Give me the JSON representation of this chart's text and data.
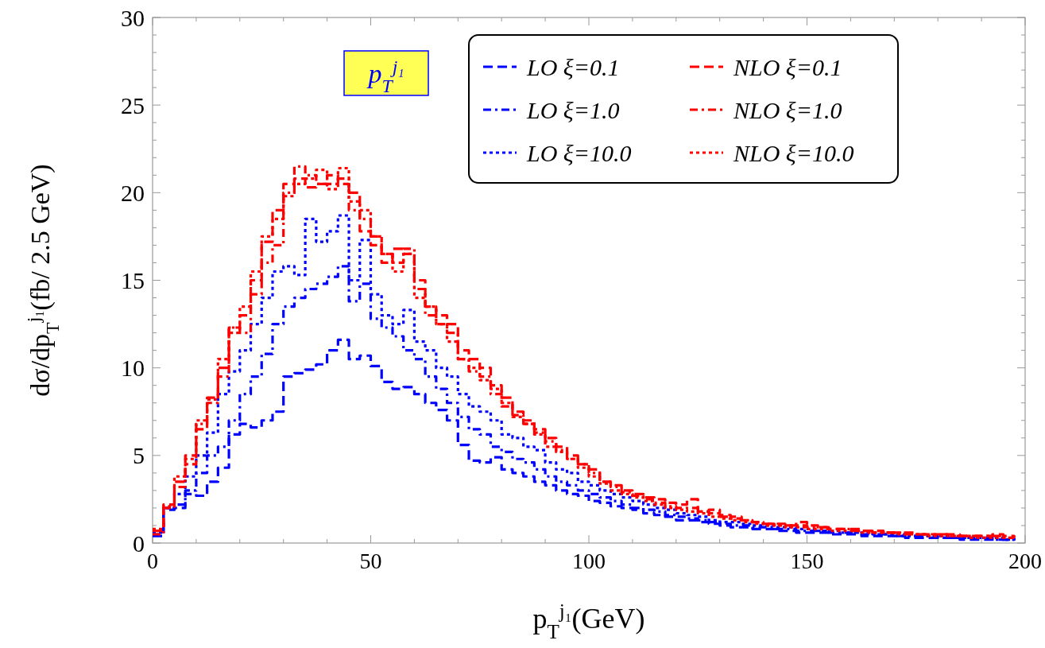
{
  "chart_data": {
    "type": "step",
    "annotations": [
      "p$_{T}$$^{j₁}$"
    ],
    "xlabel": "p$_{T}$$^{j₁}$(GeV)",
    "ylabel": "dσ/dp$_{T}$$^{j₁}$(fb/ 2.5 GeV)",
    "x": [
      0,
      2.5,
      5,
      7.5,
      10,
      12.5,
      15,
      17.5,
      20,
      22.5,
      25,
      27.5,
      30,
      32.5,
      35,
      37.5,
      40,
      42.5,
      45,
      47.5,
      50,
      52.5,
      55,
      57.5,
      60,
      62.5,
      65,
      67.5,
      70,
      72.5,
      75,
      77.5,
      80,
      82.5,
      85,
      87.5,
      90,
      92.5,
      95,
      97.5,
      100,
      102.5,
      105,
      107.5,
      110,
      112.5,
      115,
      117.5,
      120,
      122.5,
      125,
      127.5,
      130,
      132.5,
      135,
      137.5,
      140,
      142.5,
      145,
      147.5,
      150,
      152.5,
      155,
      157.5,
      160,
      162.5,
      165,
      167.5,
      170,
      172.5,
      175,
      177.5,
      180,
      182.5,
      185,
      187.5,
      190,
      192.5,
      195,
      197.5
    ],
    "series": [
      {
        "name": "LO ξ=0.1",
        "color": "#0000ff",
        "line_style": "dashed",
        "values": [
          0.4,
          1.9,
          2.0,
          2.8,
          2.7,
          3.5,
          4.3,
          6.2,
          6.8,
          6.6,
          7.0,
          7.5,
          9.5,
          9.7,
          9.9,
          10.2,
          11.0,
          11.6,
          10.5,
          10.7,
          10.1,
          9.2,
          8.8,
          8.9,
          8.5,
          8.0,
          7.6,
          7.0,
          5.6,
          4.7,
          4.6,
          4.9,
          4.2,
          4.0,
          3.8,
          3.5,
          3.3,
          3.0,
          2.8,
          2.7,
          2.4,
          2.3,
          2.1,
          2.0,
          1.9,
          1.7,
          1.6,
          1.5,
          1.3,
          1.3,
          1.2,
          1.1,
          1.0,
          0.9,
          0.9,
          0.8,
          0.8,
          0.7,
          0.7,
          0.6,
          0.6,
          0.6,
          0.5,
          0.5,
          0.5,
          0.4,
          0.4,
          0.4,
          0.4,
          0.3,
          0.3,
          0.3,
          0.3,
          0.3,
          0.2,
          0.2,
          0.2,
          0.2,
          0.2,
          0.2
        ]
      },
      {
        "name": "LO ξ=1.0",
        "color": "#0000ff",
        "line_style": "dashdot",
        "values": [
          0.5,
          2.0,
          2.2,
          3.0,
          4.0,
          5.0,
          5.5,
          7.0,
          8.5,
          9.5,
          10.8,
          12.5,
          13.5,
          14.0,
          14.5,
          14.8,
          15.2,
          15.8,
          13.8,
          14.8,
          12.8,
          12.3,
          11.8,
          11.0,
          10.5,
          9.5,
          8.8,
          8.0,
          7.2,
          6.5,
          6.2,
          5.5,
          5.2,
          4.8,
          4.6,
          4.2,
          3.8,
          3.5,
          3.3,
          3.0,
          2.8,
          2.6,
          2.4,
          2.2,
          2.0,
          1.9,
          1.8,
          1.6,
          1.5,
          1.4,
          1.3,
          1.2,
          1.1,
          1.0,
          1.0,
          0.9,
          0.9,
          0.8,
          0.8,
          0.7,
          0.7,
          0.7,
          0.6,
          0.6,
          0.6,
          0.5,
          0.5,
          0.5,
          0.4,
          0.4,
          0.4,
          0.4,
          0.3,
          0.3,
          0.3,
          0.3,
          0.3,
          0.2,
          0.2,
          0.3
        ]
      },
      {
        "name": "LO ξ=10.0",
        "color": "#0000ff",
        "line_style": "dotted",
        "values": [
          0.6,
          2.0,
          2.8,
          3.8,
          5.0,
          6.3,
          8.5,
          9.8,
          11.0,
          12.5,
          14.0,
          15.5,
          15.8,
          15.3,
          18.5,
          17.2,
          17.8,
          18.7,
          15.0,
          17.3,
          14.2,
          13.0,
          12.5,
          13.3,
          11.5,
          11.0,
          10.0,
          9.5,
          8.5,
          7.8,
          7.5,
          7.0,
          6.2,
          6.0,
          5.5,
          5.3,
          4.6,
          4.2,
          4.0,
          3.5,
          3.3,
          3.0,
          2.8,
          2.6,
          2.4,
          2.2,
          2.0,
          1.9,
          1.7,
          1.6,
          1.5,
          1.3,
          1.2,
          1.2,
          1.1,
          1.0,
          1.0,
          0.9,
          0.9,
          0.8,
          0.8,
          0.7,
          0.7,
          0.6,
          0.6,
          0.6,
          0.5,
          0.5,
          0.5,
          0.4,
          0.4,
          0.4,
          0.4,
          0.3,
          0.3,
          0.3,
          0.3,
          0.3,
          0.2,
          0.3
        ]
      },
      {
        "name": "NLO ξ=0.1",
        "color": "#ff0000",
        "line_style": "dashed",
        "values": [
          0.7,
          2.2,
          3.5,
          5.0,
          6.5,
          8.3,
          10.0,
          12.3,
          13.0,
          15.0,
          17.2,
          19.0,
          20.5,
          20.8,
          20.3,
          20.5,
          21.0,
          20.5,
          20.0,
          17.8,
          17.0,
          16.0,
          16.8,
          16.5,
          15.0,
          13.5,
          13.0,
          12.5,
          11.0,
          10.5,
          10.0,
          9.0,
          8.3,
          7.5,
          7.0,
          6.5,
          6.0,
          5.5,
          5.0,
          4.5,
          4.2,
          3.5,
          3.3,
          3.0,
          2.8,
          2.6,
          2.5,
          2.3,
          2.2,
          2.5,
          1.8,
          1.9,
          1.6,
          1.5,
          1.3,
          1.2,
          1.1,
          1.1,
          1.0,
          1.2,
          1.0,
          0.9,
          0.8,
          0.8,
          0.8,
          0.7,
          0.7,
          0.6,
          0.6,
          0.6,
          0.5,
          0.5,
          0.5,
          0.5,
          0.4,
          0.4,
          0.4,
          0.5,
          0.4,
          0.3
        ]
      },
      {
        "name": "NLO ξ=1.0",
        "color": "#ff0000",
        "line_style": "dashdot",
        "values": [
          0.5,
          2.0,
          3.2,
          4.5,
          6.8,
          8.0,
          9.5,
          12.3,
          12.0,
          14.2,
          16.0,
          17.0,
          20.0,
          21.5,
          21.0,
          20.5,
          20.5,
          20.8,
          19.0,
          18.5,
          17.5,
          16.5,
          16.0,
          16.8,
          14.5,
          13.0,
          12.5,
          12.0,
          10.5,
          9.8,
          9.5,
          8.5,
          7.8,
          7.3,
          6.8,
          6.3,
          5.8,
          5.3,
          4.8,
          4.5,
          4.0,
          3.5,
          3.2,
          2.9,
          2.7,
          2.5,
          2.3,
          2.1,
          2.0,
          2.0,
          1.8,
          1.7,
          1.5,
          1.4,
          1.3,
          1.2,
          1.1,
          1.0,
          1.0,
          1.0,
          0.9,
          0.9,
          0.8,
          0.8,
          0.7,
          0.7,
          0.6,
          0.6,
          0.6,
          0.5,
          0.5,
          0.5,
          0.5,
          0.4,
          0.4,
          0.4,
          0.4,
          0.4,
          0.3,
          0.3
        ]
      },
      {
        "name": "NLO ξ=10.0",
        "color": "#ff0000",
        "line_style": "dotted",
        "values": [
          0.8,
          2.1,
          3.8,
          4.8,
          7.0,
          8.2,
          10.5,
          12.0,
          13.5,
          15.5,
          17.5,
          18.5,
          19.8,
          20.5,
          20.8,
          21.3,
          20.2,
          21.4,
          19.5,
          19.0,
          17.5,
          16.5,
          15.5,
          16.5,
          14.0,
          13.5,
          12.5,
          11.5,
          10.5,
          10.0,
          9.3,
          8.8,
          8.0,
          7.2,
          6.8,
          6.2,
          5.5,
          5.2,
          4.8,
          4.3,
          3.8,
          3.4,
          3.0,
          2.8,
          2.6,
          2.4,
          2.2,
          2.0,
          1.9,
          1.8,
          1.7,
          1.5,
          1.4,
          1.3,
          1.2,
          1.1,
          1.0,
          1.0,
          0.9,
          0.9,
          0.8,
          0.8,
          0.7,
          0.7,
          0.7,
          0.6,
          0.6,
          0.6,
          0.5,
          0.5,
          0.5,
          0.4,
          0.4,
          0.4,
          0.4,
          0.3,
          0.3,
          0.3,
          0.3,
          0.3
        ]
      }
    ],
    "xlim": [
      0,
      200
    ],
    "xticks": [
      0,
      {
        "value": 10,
        "label": null
      },
      {
        "value": 20,
        "label": null
      },
      {
        "value": 30,
        "label": null
      },
      {
        "value": 40,
        "label": null
      },
      50,
      {
        "value": 60,
        "label": null
      },
      {
        "value": 70,
        "label": null
      },
      {
        "value": 80,
        "label": null
      },
      {
        "value": 90,
        "label": null
      },
      100,
      {
        "value": 110,
        "label": null
      },
      {
        "value": 120,
        "label": null
      },
      {
        "value": 130,
        "label": null
      },
      {
        "value": 140,
        "label": null
      },
      150,
      {
        "value": 160,
        "label": null
      },
      {
        "value": 170,
        "label": null
      },
      {
        "value": 180,
        "label": null
      },
      {
        "value": 190,
        "label": null
      },
      200
    ],
    "ylim": [
      0,
      30
    ],
    "yticks": [
      0,
      {
        "value": 1,
        "label": null
      },
      {
        "value": 2,
        "label": null
      },
      {
        "value": 3,
        "label": null
      },
      {
        "value": 4,
        "label": null
      },
      5,
      {
        "value": 6,
        "label": null
      },
      {
        "value": 7,
        "label": null
      },
      {
        "value": 8,
        "label": null
      },
      {
        "value": 9,
        "label": null
      },
      10,
      {
        "value": 11,
        "label": null
      },
      {
        "value": 12,
        "label": null
      },
      {
        "value": 13,
        "label": null
      },
      {
        "value": 14,
        "label": null
      },
      15,
      {
        "value": 16,
        "label": null
      },
      {
        "value": 17,
        "label": null
      },
      {
        "value": 18,
        "label": null
      },
      {
        "value": 19,
        "label": null
      },
      20,
      {
        "value": 21,
        "label": null
      },
      {
        "value": 22,
        "label": null
      },
      {
        "value": 23,
        "label": null
      },
      {
        "value": 24,
        "label": null
      },
      25,
      {
        "value": 26,
        "label": null
      },
      {
        "value": 27,
        "label": null
      },
      {
        "value": 28,
        "label": null
      },
      {
        "value": 29,
        "label": null
      },
      30
    ],
    "grid": false,
    "legend": "top right"
  }
}
